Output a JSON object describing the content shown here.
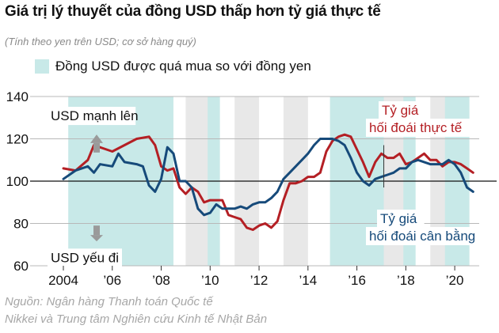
{
  "title": "Giá trị lý thuyết của đồng USD thấp hơn tỷ giá thực tế",
  "subtitle": "(Tính theo yen trên USD; cơ sở hàng quý)",
  "legend": {
    "label": "Đồng USD được quá mua so với đồng yen",
    "color": "#c8e9e8"
  },
  "source": {
    "line1": "Nguồn: Ngân hàng Thanh toán Quốc tế",
    "line2": "Nikkei và Trung tâm Nghiên cứu Kinh tế Nhật Bản"
  },
  "colors": {
    "actual": "#b41f24",
    "equilibrium": "#164a7a",
    "shade": "#c8e9e8",
    "band": "#e8e8e8"
  },
  "chart_data": {
    "type": "line",
    "title": "Giá trị lý thuyết của đồng USD thấp hơn tỷ giá thực tế",
    "xlabel": "",
    "ylabel": "",
    "xlim": [
      2004,
      2021
    ],
    "ylim": [
      60,
      140
    ],
    "yticks": [
      60,
      80,
      100,
      120,
      140
    ],
    "xticks": [
      {
        "value": 2004,
        "label": "2004"
      },
      {
        "value": 2006,
        "label": "’06"
      },
      {
        "value": 2008,
        "label": "’08"
      },
      {
        "value": 2010,
        "label": "’10"
      },
      {
        "value": 2012,
        "label": "’12"
      },
      {
        "value": 2014,
        "label": "’14"
      },
      {
        "value": 2016,
        "label": "’16"
      },
      {
        "value": 2018,
        "label": "’18"
      },
      {
        "value": 2020,
        "label": "’20"
      }
    ],
    "reference_line": 100,
    "overbought_periods": [
      [
        2004.2,
        2008.5
      ],
      [
        2009.9,
        2010.4
      ],
      [
        2014.9,
        2017.1
      ],
      [
        2017.9,
        2018.4
      ],
      [
        2019.6,
        2020.6
      ]
    ],
    "annotations": {
      "up": "USD mạnh lên",
      "down": "USD yếu đi",
      "actual_label_1": "Tỷ giá",
      "actual_label_2": "hối đoái thực tế",
      "eq_label_1": "Tỷ giá",
      "eq_label_2": "hối đoái cân bằng"
    },
    "series": [
      {
        "name": "Tỷ giá hối đoái thực tế",
        "color": "#b41f24",
        "points": [
          [
            2004.0,
            106
          ],
          [
            2004.5,
            105
          ],
          [
            2005.0,
            110
          ],
          [
            2005.25,
            117
          ],
          [
            2005.5,
            116
          ],
          [
            2006.0,
            114
          ],
          [
            2006.5,
            117
          ],
          [
            2007.0,
            120
          ],
          [
            2007.5,
            121
          ],
          [
            2007.75,
            117
          ],
          [
            2008.0,
            107
          ],
          [
            2008.25,
            105
          ],
          [
            2008.5,
            106
          ],
          [
            2008.75,
            97
          ],
          [
            2009.0,
            94
          ],
          [
            2009.25,
            97
          ],
          [
            2009.5,
            95
          ],
          [
            2009.75,
            90
          ],
          [
            2010.0,
            91
          ],
          [
            2010.5,
            91
          ],
          [
            2010.75,
            84
          ],
          [
            2011.0,
            83
          ],
          [
            2011.25,
            82
          ],
          [
            2011.5,
            78
          ],
          [
            2011.75,
            77
          ],
          [
            2012.0,
            79
          ],
          [
            2012.25,
            80
          ],
          [
            2012.5,
            78
          ],
          [
            2012.75,
            81
          ],
          [
            2013.0,
            91
          ],
          [
            2013.25,
            99
          ],
          [
            2013.5,
            99
          ],
          [
            2013.75,
            100
          ],
          [
            2014.0,
            102
          ],
          [
            2014.25,
            102
          ],
          [
            2014.5,
            104
          ],
          [
            2014.75,
            114
          ],
          [
            2015.0,
            119
          ],
          [
            2015.25,
            121
          ],
          [
            2015.5,
            122
          ],
          [
            2015.75,
            121
          ],
          [
            2016.0,
            115
          ],
          [
            2016.25,
            109
          ],
          [
            2016.5,
            102
          ],
          [
            2016.75,
            109
          ],
          [
            2017.0,
            113
          ],
          [
            2017.25,
            111
          ],
          [
            2017.5,
            111
          ],
          [
            2017.75,
            113
          ],
          [
            2018.0,
            108
          ],
          [
            2018.25,
            109
          ],
          [
            2018.5,
            111
          ],
          [
            2018.75,
            113
          ],
          [
            2019.0,
            110
          ],
          [
            2019.25,
            110
          ],
          [
            2019.5,
            107
          ],
          [
            2019.75,
            109
          ],
          [
            2020.0,
            109
          ],
          [
            2020.25,
            108
          ],
          [
            2020.5,
            106
          ],
          [
            2020.75,
            104
          ]
        ]
      },
      {
        "name": "Tỷ giá hối đoái cân bằng",
        "color": "#164a7a",
        "points": [
          [
            2004.0,
            101
          ],
          [
            2004.5,
            105
          ],
          [
            2005.0,
            107
          ],
          [
            2005.25,
            104
          ],
          [
            2005.5,
            108
          ],
          [
            2006.0,
            107
          ],
          [
            2006.25,
            113
          ],
          [
            2006.5,
            109
          ],
          [
            2007.0,
            108
          ],
          [
            2007.25,
            107
          ],
          [
            2007.5,
            98
          ],
          [
            2007.75,
            95
          ],
          [
            2008.0,
            101
          ],
          [
            2008.25,
            116
          ],
          [
            2008.5,
            113
          ],
          [
            2008.75,
            100
          ],
          [
            2009.0,
            100
          ],
          [
            2009.25,
            97
          ],
          [
            2009.5,
            87
          ],
          [
            2009.75,
            84
          ],
          [
            2010.0,
            85
          ],
          [
            2010.25,
            89
          ],
          [
            2010.5,
            87
          ],
          [
            2010.75,
            87
          ],
          [
            2011.0,
            87
          ],
          [
            2011.25,
            88
          ],
          [
            2011.5,
            87
          ],
          [
            2011.75,
            89
          ],
          [
            2012.0,
            90
          ],
          [
            2012.25,
            90
          ],
          [
            2012.5,
            92
          ],
          [
            2012.75,
            95
          ],
          [
            2013.0,
            101
          ],
          [
            2013.25,
            104
          ],
          [
            2013.5,
            107
          ],
          [
            2013.75,
            110
          ],
          [
            2014.0,
            113
          ],
          [
            2014.25,
            117
          ],
          [
            2014.5,
            120
          ],
          [
            2014.75,
            120
          ],
          [
            2015.0,
            120
          ],
          [
            2015.25,
            119
          ],
          [
            2015.5,
            117
          ],
          [
            2015.75,
            111
          ],
          [
            2016.0,
            104
          ],
          [
            2016.25,
            100
          ],
          [
            2016.5,
            98
          ],
          [
            2016.75,
            101
          ],
          [
            2017.0,
            102
          ],
          [
            2017.25,
            103
          ],
          [
            2017.5,
            104
          ],
          [
            2017.75,
            106
          ],
          [
            2018.0,
            106
          ],
          [
            2018.25,
            109
          ],
          [
            2018.5,
            110
          ],
          [
            2018.75,
            109
          ],
          [
            2019.0,
            108
          ],
          [
            2019.25,
            108
          ],
          [
            2019.5,
            108
          ],
          [
            2019.75,
            110
          ],
          [
            2020.0,
            108
          ],
          [
            2020.25,
            104
          ],
          [
            2020.5,
            97
          ],
          [
            2020.75,
            95
          ]
        ]
      }
    ]
  }
}
